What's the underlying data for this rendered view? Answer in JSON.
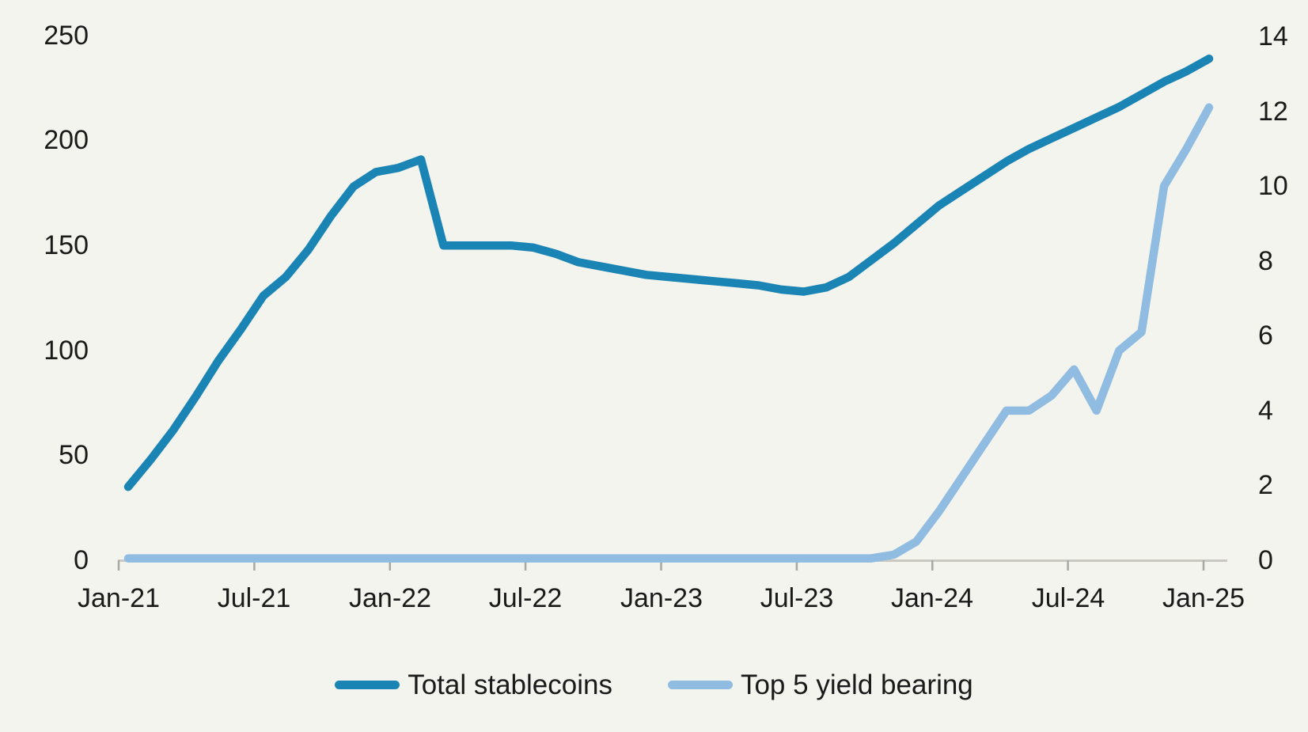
{
  "page": {
    "background_color": "#f4f4ee",
    "text_color": "#1a1a1a",
    "axis_line_color": "#c9c9c2",
    "tick_color": "#a8a8a4"
  },
  "chart_data": {
    "type": "line",
    "title": "",
    "grid": false,
    "legend_position": "bottom-center",
    "x_period": "monthly from Jan-2021 to Jan-2025",
    "x_tick_labels": [
      "Jan-21",
      "Jul-21",
      "Jan-22",
      "Jul-22",
      "Jan-23",
      "Jul-23",
      "Jan-24",
      "Jul-24",
      "Jan-25"
    ],
    "left_axis": {
      "min": 0,
      "max": 250,
      "tick_labels": [
        "250",
        "200",
        "150",
        "100",
        "50",
        "0"
      ]
    },
    "right_axis": {
      "min": 0,
      "max": 14,
      "tick_labels": [
        "14",
        "12",
        "10",
        "8",
        "6",
        "4",
        "2",
        "0"
      ]
    },
    "series": [
      {
        "name": "Total stablecoins",
        "axis": "left",
        "color": "#1a84b5",
        "values": [
          35,
          48,
          62,
          78,
          95,
          110,
          126,
          135,
          148,
          164,
          178,
          185,
          187,
          191,
          150,
          150,
          150,
          150,
          149,
          146,
          142,
          140,
          138,
          136,
          135,
          134,
          133,
          132,
          131,
          129,
          128,
          130,
          135,
          143,
          151,
          160,
          169,
          176,
          183,
          190,
          196,
          201,
          206,
          211,
          216,
          222,
          228,
          233,
          239
        ]
      },
      {
        "name": "Top 5 yield bearing",
        "axis": "right",
        "color": "#8fbce0",
        "values": [
          0.05,
          0.05,
          0.05,
          0.05,
          0.05,
          0.05,
          0.05,
          0.05,
          0.05,
          0.05,
          0.05,
          0.05,
          0.05,
          0.05,
          0.05,
          0.05,
          0.05,
          0.05,
          0.05,
          0.05,
          0.05,
          0.05,
          0.05,
          0.05,
          0.05,
          0.05,
          0.05,
          0.05,
          0.05,
          0.05,
          0.05,
          0.05,
          0.05,
          0.05,
          0.15,
          0.5,
          1.3,
          2.2,
          3.1,
          4,
          4,
          4.4,
          5.1,
          4,
          5.6,
          6.1,
          10,
          11,
          12.1
        ]
      }
    ]
  }
}
